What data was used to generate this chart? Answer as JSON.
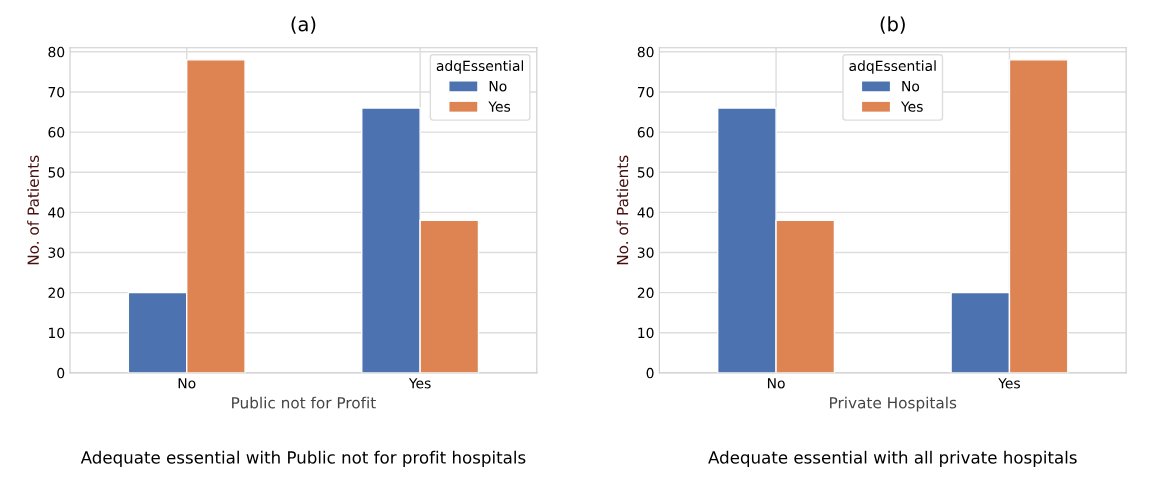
{
  "chart_data": [
    {
      "type": "bar",
      "title": "(a)",
      "xlabel": "Public not for Profit",
      "ylabel": "No. of Patients",
      "legend_title": "adqEssential",
      "categories": [
        "No",
        "Yes"
      ],
      "series": [
        {
          "name": "No",
          "color": "#4c72b0",
          "values": [
            20,
            66
          ]
        },
        {
          "name": "Yes",
          "color": "#dd8452",
          "values": [
            78,
            38
          ]
        }
      ],
      "ylim": [
        0,
        81
      ],
      "yticks": [
        0,
        10,
        20,
        30,
        40,
        50,
        60,
        70,
        80
      ],
      "grid": true,
      "legend": "top right",
      "annotations": [
        "Adequate essential with Public not for profit hospitals"
      ]
    },
    {
      "type": "bar",
      "title": "(b)",
      "xlabel": "Private Hospitals",
      "ylabel": "No. of Patients",
      "legend_title": "adqEssential",
      "categories": [
        "No",
        "Yes"
      ],
      "series": [
        {
          "name": "No",
          "color": "#4c72b0",
          "values": [
            66,
            20
          ]
        },
        {
          "name": "Yes",
          "color": "#dd8452",
          "values": [
            38,
            78
          ]
        }
      ],
      "ylim": [
        0,
        81
      ],
      "yticks": [
        0,
        10,
        20,
        30,
        40,
        50,
        60,
        70,
        80
      ],
      "grid": true,
      "legend": "top",
      "annotations": [
        "Adequate essential with all private hospitals"
      ]
    }
  ]
}
